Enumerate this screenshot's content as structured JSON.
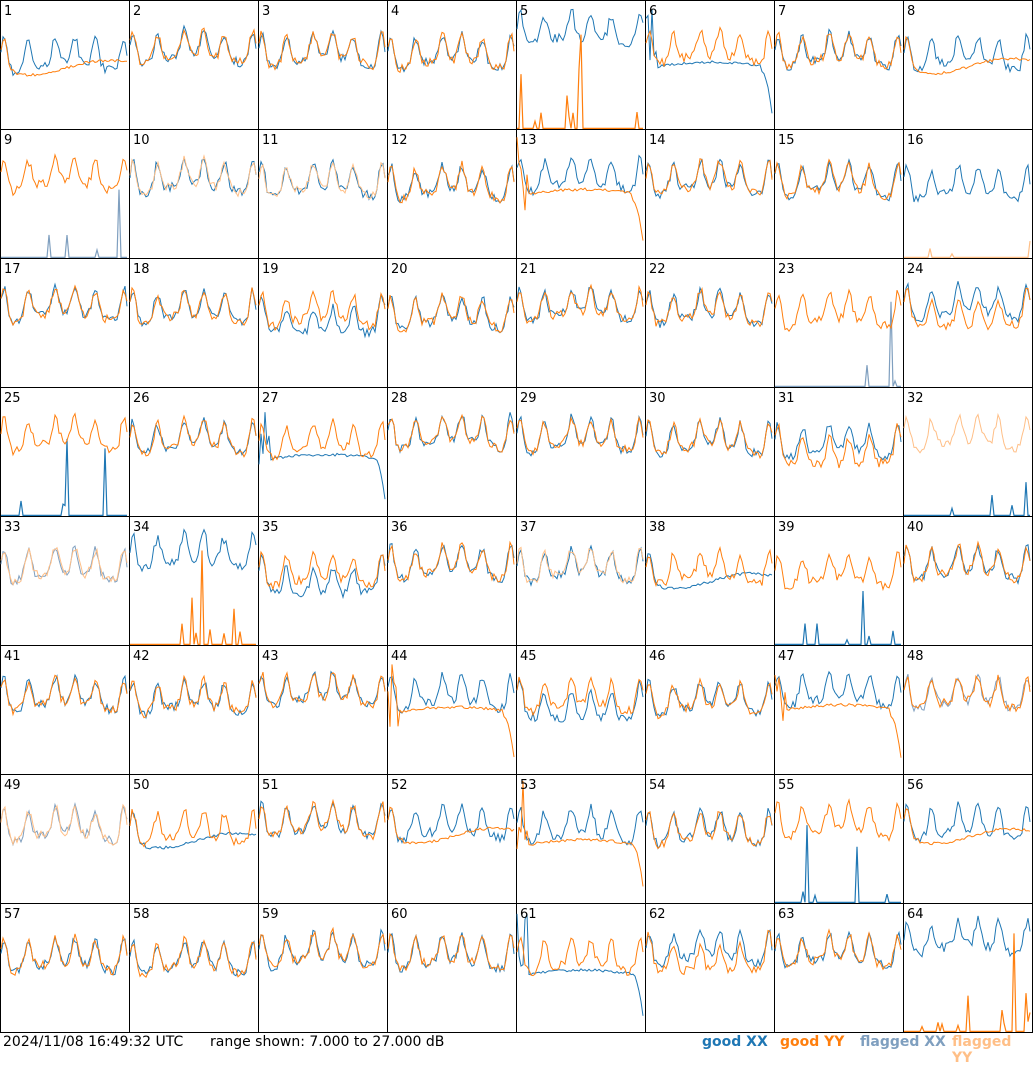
{
  "footer": {
    "timestamp": "2024/11/08 16:49:32 UTC",
    "range_text": "range shown: 7.000 to 27.000 dB",
    "legend": [
      {
        "label": "good ",
        "pol": "XX",
        "color": "#1f77b4"
      },
      {
        "label": "good ",
        "pol": "YY",
        "color": "#ff7f0e"
      },
      {
        "label": "flagged ",
        "pol": "XX",
        "color": "#7f9fbf"
      },
      {
        "label": "flagged ",
        "pol": "YY",
        "color": "#ffbf87"
      }
    ]
  },
  "colors": {
    "good_xx": "#1f77b4",
    "good_yy": "#ff7f0e",
    "flagged_xx": "#7f9fbf",
    "flagged_yy": "#ffbf87"
  },
  "chart_data": {
    "type": "line",
    "layout": "8x8 small multiples",
    "ylim": [
      7,
      27
    ],
    "units": "dB",
    "panels": [
      {
        "id": "1",
        "xx": "good",
        "yy": "good",
        "xx_mode": "normal",
        "yy_mode": "flat"
      },
      {
        "id": "2",
        "xx": "good",
        "yy": "good",
        "xx_mode": "normal",
        "yy_mode": "normal"
      },
      {
        "id": "3",
        "xx": "good",
        "yy": "good",
        "xx_mode": "normal",
        "yy_mode": "normal"
      },
      {
        "id": "4",
        "xx": "good",
        "yy": "good",
        "xx_mode": "normal",
        "yy_mode": "normal"
      },
      {
        "id": "5",
        "xx": "good",
        "yy": "good",
        "xx_mode": "high",
        "yy_mode": "spikes"
      },
      {
        "id": "6",
        "xx": "good",
        "yy": "good",
        "xx_mode": "decay",
        "yy_mode": "normal"
      },
      {
        "id": "7",
        "xx": "good",
        "yy": "good",
        "xx_mode": "normal",
        "yy_mode": "normal"
      },
      {
        "id": "8",
        "xx": "good",
        "yy": "good",
        "xx_mode": "normal",
        "yy_mode": "flat"
      },
      {
        "id": "9",
        "xx": "flagged",
        "yy": "good",
        "xx_mode": "spikes",
        "yy_mode": "normal"
      },
      {
        "id": "10",
        "xx": "good",
        "yy": "flagged",
        "xx_mode": "normal",
        "yy_mode": "normal"
      },
      {
        "id": "11",
        "xx": "good",
        "yy": "flagged",
        "xx_mode": "normal",
        "yy_mode": "normal"
      },
      {
        "id": "12",
        "xx": "good",
        "yy": "good",
        "xx_mode": "normal",
        "yy_mode": "normal"
      },
      {
        "id": "13",
        "xx": "good",
        "yy": "good",
        "xx_mode": "normal",
        "yy_mode": "decay"
      },
      {
        "id": "14",
        "xx": "good",
        "yy": "good",
        "xx_mode": "normal",
        "yy_mode": "normal"
      },
      {
        "id": "15",
        "xx": "good",
        "yy": "good",
        "xx_mode": "normal",
        "yy_mode": "normal"
      },
      {
        "id": "16",
        "xx": "good",
        "yy": "flagged",
        "xx_mode": "normal",
        "yy_mode": "spikes"
      },
      {
        "id": "17",
        "xx": "good",
        "yy": "good",
        "xx_mode": "normal",
        "yy_mode": "normal"
      },
      {
        "id": "18",
        "xx": "good",
        "yy": "good",
        "xx_mode": "normal",
        "yy_mode": "normal"
      },
      {
        "id": "19",
        "xx": "good",
        "yy": "good",
        "xx_mode": "low",
        "yy_mode": "normal"
      },
      {
        "id": "20",
        "xx": "good",
        "yy": "good",
        "xx_mode": "normal",
        "yy_mode": "normal"
      },
      {
        "id": "21",
        "xx": "good",
        "yy": "good",
        "xx_mode": "normal",
        "yy_mode": "normal"
      },
      {
        "id": "22",
        "xx": "good",
        "yy": "good",
        "xx_mode": "normal",
        "yy_mode": "normal"
      },
      {
        "id": "23",
        "xx": "flagged",
        "yy": "good",
        "xx_mode": "spikes",
        "yy_mode": "normal"
      },
      {
        "id": "24",
        "xx": "good",
        "yy": "good",
        "xx_mode": "normal",
        "yy_mode": "low"
      },
      {
        "id": "25",
        "xx": "good",
        "yy": "good",
        "xx_mode": "spikes",
        "yy_mode": "normal"
      },
      {
        "id": "26",
        "xx": "good",
        "yy": "good",
        "xx_mode": "normal",
        "yy_mode": "normal"
      },
      {
        "id": "27",
        "xx": "good",
        "yy": "good",
        "xx_mode": "decay",
        "yy_mode": "normal"
      },
      {
        "id": "28",
        "xx": "good",
        "yy": "good",
        "xx_mode": "normal",
        "yy_mode": "normal"
      },
      {
        "id": "29",
        "xx": "good",
        "yy": "good",
        "xx_mode": "normal",
        "yy_mode": "normal"
      },
      {
        "id": "30",
        "xx": "good",
        "yy": "good",
        "xx_mode": "normal",
        "yy_mode": "normal"
      },
      {
        "id": "31",
        "xx": "good",
        "yy": "good",
        "xx_mode": "normal",
        "yy_mode": "low"
      },
      {
        "id": "32",
        "xx": "good",
        "yy": "flagged",
        "xx_mode": "spikes",
        "yy_mode": "normal"
      },
      {
        "id": "33",
        "xx": "flagged",
        "yy": "flagged",
        "xx_mode": "normal",
        "yy_mode": "normal"
      },
      {
        "id": "34",
        "xx": "good",
        "yy": "good",
        "xx_mode": "high",
        "yy_mode": "spikes"
      },
      {
        "id": "35",
        "xx": "good",
        "yy": "good",
        "xx_mode": "low",
        "yy_mode": "normal"
      },
      {
        "id": "36",
        "xx": "good",
        "yy": "good",
        "xx_mode": "normal",
        "yy_mode": "normal"
      },
      {
        "id": "37",
        "xx": "good",
        "yy": "flagged",
        "xx_mode": "normal",
        "yy_mode": "normal"
      },
      {
        "id": "38",
        "xx": "good",
        "yy": "good",
        "xx_mode": "flat",
        "yy_mode": "normal"
      },
      {
        "id": "39",
        "xx": "good",
        "yy": "good",
        "xx_mode": "spikes",
        "yy_mode": "normal"
      },
      {
        "id": "40",
        "xx": "good",
        "yy": "good",
        "xx_mode": "normal",
        "yy_mode": "normal"
      },
      {
        "id": "41",
        "xx": "good",
        "yy": "good",
        "xx_mode": "normal",
        "yy_mode": "normal"
      },
      {
        "id": "42",
        "xx": "good",
        "yy": "good",
        "xx_mode": "normal",
        "yy_mode": "normal"
      },
      {
        "id": "43",
        "xx": "good",
        "yy": "good",
        "xx_mode": "normal",
        "yy_mode": "normal"
      },
      {
        "id": "44",
        "xx": "good",
        "yy": "good",
        "xx_mode": "normal",
        "yy_mode": "decay"
      },
      {
        "id": "45",
        "xx": "good",
        "yy": "good",
        "xx_mode": "low",
        "yy_mode": "normal"
      },
      {
        "id": "46",
        "xx": "good",
        "yy": "good",
        "xx_mode": "normal",
        "yy_mode": "normal"
      },
      {
        "id": "47",
        "xx": "good",
        "yy": "good",
        "xx_mode": "normal",
        "yy_mode": "decay"
      },
      {
        "id": "48",
        "xx": "flagged",
        "yy": "good",
        "xx_mode": "normal",
        "yy_mode": "normal"
      },
      {
        "id": "49",
        "xx": "flagged",
        "yy": "flagged",
        "xx_mode": "normal",
        "yy_mode": "normal"
      },
      {
        "id": "50",
        "xx": "good",
        "yy": "good",
        "xx_mode": "flat",
        "yy_mode": "normal"
      },
      {
        "id": "51",
        "xx": "good",
        "yy": "good",
        "xx_mode": "normal",
        "yy_mode": "normal"
      },
      {
        "id": "52",
        "xx": "good",
        "yy": "good",
        "xx_mode": "normal",
        "yy_mode": "flat"
      },
      {
        "id": "53",
        "xx": "good",
        "yy": "good",
        "xx_mode": "normal",
        "yy_mode": "decay"
      },
      {
        "id": "54",
        "xx": "good",
        "yy": "good",
        "xx_mode": "normal",
        "yy_mode": "normal"
      },
      {
        "id": "55",
        "xx": "good",
        "yy": "good",
        "xx_mode": "spikes",
        "yy_mode": "normal"
      },
      {
        "id": "56",
        "xx": "good",
        "yy": "good",
        "xx_mode": "normal",
        "yy_mode": "flat"
      },
      {
        "id": "57",
        "xx": "good",
        "yy": "good",
        "xx_mode": "normal",
        "yy_mode": "normal"
      },
      {
        "id": "58",
        "xx": "good",
        "yy": "good",
        "xx_mode": "normal",
        "yy_mode": "normal"
      },
      {
        "id": "59",
        "xx": "good",
        "yy": "good",
        "xx_mode": "normal",
        "yy_mode": "normal"
      },
      {
        "id": "60",
        "xx": "good",
        "yy": "good",
        "xx_mode": "normal",
        "yy_mode": "normal"
      },
      {
        "id": "61",
        "xx": "good",
        "yy": "good",
        "xx_mode": "decay",
        "yy_mode": "normal"
      },
      {
        "id": "62",
        "xx": "good",
        "yy": "good",
        "xx_mode": "normal",
        "yy_mode": "low"
      },
      {
        "id": "63",
        "xx": "good",
        "yy": "good",
        "xx_mode": "normal",
        "yy_mode": "normal"
      },
      {
        "id": "64",
        "xx": "good",
        "yy": "good",
        "xx_mode": "high",
        "yy_mode": "spikes"
      }
    ]
  }
}
